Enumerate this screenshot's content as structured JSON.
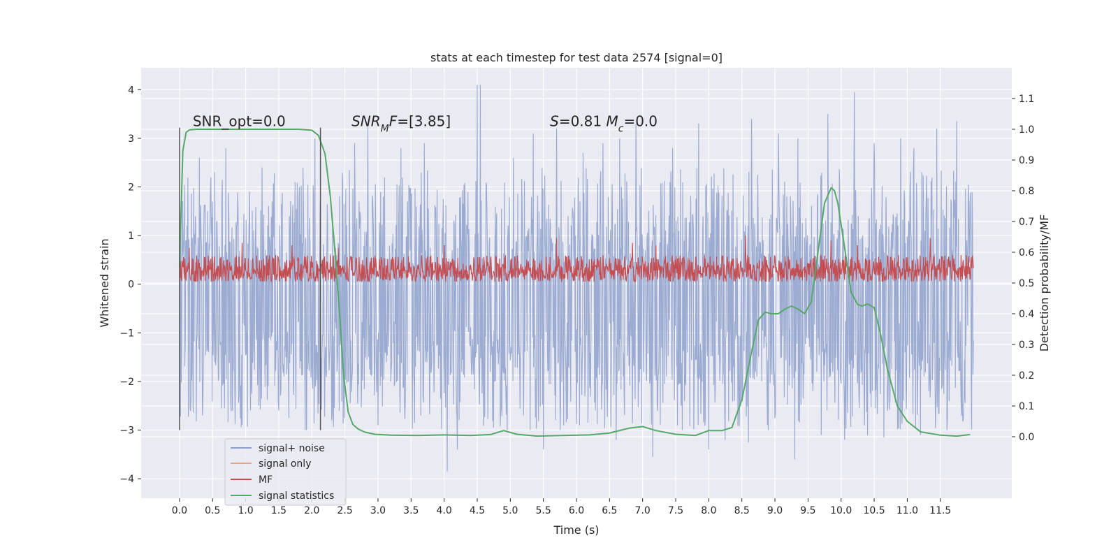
{
  "chart_data": {
    "type": "line",
    "title": "stats at each timestep for test data 2574 [signal=0]",
    "xlabel": "Time (s)",
    "ylabel": "Whitened strain",
    "y2label": "Detection probability/MF",
    "xlim": [
      -0.58,
      12.58
    ],
    "ylim": [
      -4.4,
      4.45
    ],
    "y2lim": [
      -0.2,
      1.2
    ],
    "x_ticks": [
      0.0,
      0.5,
      1.0,
      1.5,
      2.0,
      2.5,
      3.0,
      3.5,
      4.0,
      4.5,
      5.0,
      5.5,
      6.0,
      6.5,
      7.0,
      7.5,
      8.0,
      8.5,
      9.0,
      9.5,
      10.0,
      10.5,
      11.0,
      11.5
    ],
    "x_tick_labels": [
      "0.0",
      "0.5",
      "1.0",
      "1.5",
      "2.0",
      "2.5",
      "3.0",
      "3.5",
      "4.0",
      "4.5",
      "5.0",
      "5.5",
      "6.0",
      "6.5",
      "7.0",
      "7.5",
      "8.0",
      "8.5",
      "9.0",
      "9.5",
      "10.0",
      "10.5",
      "11.0",
      "11.5"
    ],
    "y_ticks": [
      -4,
      -3,
      -2,
      -1,
      0,
      1,
      2,
      3,
      4
    ],
    "y_tick_labels": [
      "−4",
      "−3",
      "−2",
      "−1",
      "0",
      "1",
      "2",
      "3",
      "4"
    ],
    "y2_ticks": [
      0.0,
      0.1,
      0.2,
      0.3,
      0.4,
      0.5,
      0.6,
      0.7,
      0.8,
      0.9,
      1.0,
      1.1
    ],
    "y2_tick_labels": [
      "0.0",
      "0.1",
      "0.2",
      "0.3",
      "0.4",
      "0.5",
      "0.6",
      "0.7",
      "0.8",
      "0.9",
      "1.0",
      "1.1"
    ],
    "grid": true,
    "legend_position": "lower-left",
    "annotations": [
      {
        "name": "snr-opt",
        "x": 0.2,
        "y": 3.25,
        "parts": [
          {
            "t": "SNR_opt=0.0",
            "s": "n"
          }
        ]
      },
      {
        "name": "snr-mf",
        "x": 2.6,
        "y": 3.25,
        "parts": [
          {
            "t": "SNR",
            "s": "i"
          },
          {
            "t": "M",
            "s": "isub"
          },
          {
            "t": "F",
            "s": "i"
          },
          {
            "t": "=[3.85]",
            "s": "n"
          }
        ]
      },
      {
        "name": "s-value",
        "x": 5.6,
        "y": 3.25,
        "parts": [
          {
            "t": "S",
            "s": "i"
          },
          {
            "t": "=0.81   ",
            "s": "n"
          },
          {
            "t": "M",
            "s": "i"
          },
          {
            "t": "c",
            "s": "isub"
          },
          {
            "t": "=0.0",
            "s": "n"
          }
        ]
      }
    ],
    "vlines": [
      0.0,
      2.13
    ],
    "vline_range": [
      -3.0,
      3.22
    ],
    "series": [
      {
        "name": "signal+ noise",
        "color": "#8da0cb",
        "opacity": 0.85,
        "axis": "left",
        "kind": "noise",
        "x_range": [
          0.0,
          12.0
        ],
        "y_envelope": [
          -3.0,
          2.4
        ],
        "peaks": [
          [
            0.3,
            2.6
          ],
          [
            0.7,
            2.8
          ],
          [
            1.25,
            2.4
          ],
          [
            1.75,
            2.1
          ],
          [
            2.05,
            3.0
          ],
          [
            2.65,
            2.9
          ],
          [
            2.85,
            3.25
          ],
          [
            3.35,
            2.8
          ],
          [
            3.7,
            2.9
          ],
          [
            4.5,
            4.1
          ],
          [
            4.55,
            4.1
          ],
          [
            5.05,
            2.6
          ],
          [
            5.35,
            3.1
          ],
          [
            5.7,
            3.2
          ],
          [
            6.1,
            2.7
          ],
          [
            6.4,
            2.9
          ],
          [
            6.65,
            3.0
          ],
          [
            6.9,
            3.3
          ],
          [
            7.45,
            2.8
          ],
          [
            7.85,
            3.3
          ],
          [
            8.25,
            3.2
          ],
          [
            8.65,
            3.4
          ],
          [
            9.05,
            3.1
          ],
          [
            9.35,
            3.0
          ],
          [
            9.8,
            3.5
          ],
          [
            10.2,
            3.95
          ],
          [
            10.5,
            2.9
          ],
          [
            10.9,
            3.0
          ],
          [
            11.1,
            2.8
          ],
          [
            11.45,
            3.2
          ],
          [
            11.75,
            3.35
          ]
        ],
        "troughs": [
          [
            0.35,
            -2.7
          ],
          [
            0.8,
            -2.6
          ],
          [
            1.2,
            -2.5
          ],
          [
            1.5,
            -2.6
          ],
          [
            1.9,
            -3.0
          ],
          [
            2.3,
            -2.8
          ],
          [
            3.0,
            -2.9
          ],
          [
            3.65,
            -2.7
          ],
          [
            4.05,
            -3.85
          ],
          [
            4.2,
            -3.4
          ],
          [
            4.95,
            -3.0
          ],
          [
            5.3,
            -3.0
          ],
          [
            5.5,
            -3.4
          ],
          [
            6.05,
            -2.9
          ],
          [
            6.6,
            -3.2
          ],
          [
            7.15,
            -3.55
          ],
          [
            7.6,
            -3.0
          ],
          [
            8.0,
            -3.4
          ],
          [
            8.25,
            -3.2
          ],
          [
            8.6,
            -3.25
          ],
          [
            8.9,
            -3.0
          ],
          [
            9.3,
            -3.6
          ],
          [
            9.7,
            -3.1
          ],
          [
            10.05,
            -3.2
          ],
          [
            10.4,
            -3.1
          ],
          [
            10.65,
            -3.15
          ],
          [
            11.2,
            -3.1
          ],
          [
            11.6,
            -3.0
          ],
          [
            11.85,
            -2.8
          ]
        ]
      },
      {
        "name": "signal only",
        "color": "#e8a487",
        "axis": "left",
        "kind": "empty"
      },
      {
        "name": "MF",
        "color": "#c44e52",
        "axis": "left",
        "kind": "noise",
        "x_range": [
          0.0,
          12.0
        ],
        "y_envelope": [
          0.05,
          0.6
        ],
        "peaks": [
          [
            0.15,
            0.75
          ],
          [
            0.95,
            0.85
          ],
          [
            1.7,
            0.8
          ],
          [
            2.4,
            0.75
          ],
          [
            4.0,
            0.8
          ],
          [
            5.7,
            0.95
          ],
          [
            6.85,
            0.85
          ],
          [
            7.2,
            0.8
          ],
          [
            8.55,
            1.0
          ],
          [
            9.85,
            0.9
          ],
          [
            10.25,
            0.8
          ],
          [
            11.35,
            0.95
          ]
        ],
        "troughs": []
      },
      {
        "name": "signal statistics",
        "color": "#55a868",
        "axis": "right",
        "kind": "curve",
        "x": [
          0.0,
          0.05,
          0.1,
          0.15,
          0.25,
          0.5,
          1.0,
          1.5,
          1.8,
          2.0,
          2.1,
          2.2,
          2.28,
          2.35,
          2.42,
          2.48,
          2.55,
          2.62,
          2.7,
          2.8,
          2.95,
          3.2,
          3.6,
          4.0,
          4.4,
          4.7,
          4.9,
          5.1,
          5.4,
          5.8,
          6.2,
          6.5,
          6.8,
          7.0,
          7.2,
          7.5,
          7.8,
          8.0,
          8.2,
          8.35,
          8.5,
          8.65,
          8.75,
          8.85,
          8.95,
          9.05,
          9.15,
          9.25,
          9.35,
          9.45,
          9.55,
          9.65,
          9.75,
          9.85,
          9.9,
          9.95,
          10.05,
          10.15,
          10.25,
          10.32,
          10.4,
          10.5,
          10.6,
          10.7,
          10.85,
          11.0,
          11.2,
          11.5,
          11.75,
          11.95
        ],
        "y": [
          0.55,
          0.93,
          0.99,
          0.998,
          1.0,
          1.0,
          1.0,
          1.0,
          1.0,
          0.997,
          0.98,
          0.92,
          0.78,
          0.6,
          0.4,
          0.2,
          0.08,
          0.04,
          0.025,
          0.015,
          0.008,
          0.005,
          0.004,
          0.006,
          0.004,
          0.007,
          0.02,
          0.008,
          0.002,
          0.004,
          0.006,
          0.012,
          0.028,
          0.033,
          0.02,
          0.008,
          0.004,
          0.02,
          0.02,
          0.03,
          0.12,
          0.28,
          0.38,
          0.405,
          0.4,
          0.4,
          0.415,
          0.425,
          0.415,
          0.4,
          0.44,
          0.6,
          0.76,
          0.81,
          0.8,
          0.76,
          0.62,
          0.47,
          0.43,
          0.425,
          0.432,
          0.42,
          0.33,
          0.22,
          0.1,
          0.05,
          0.016,
          0.005,
          0.002,
          0.007
        ]
      }
    ]
  }
}
